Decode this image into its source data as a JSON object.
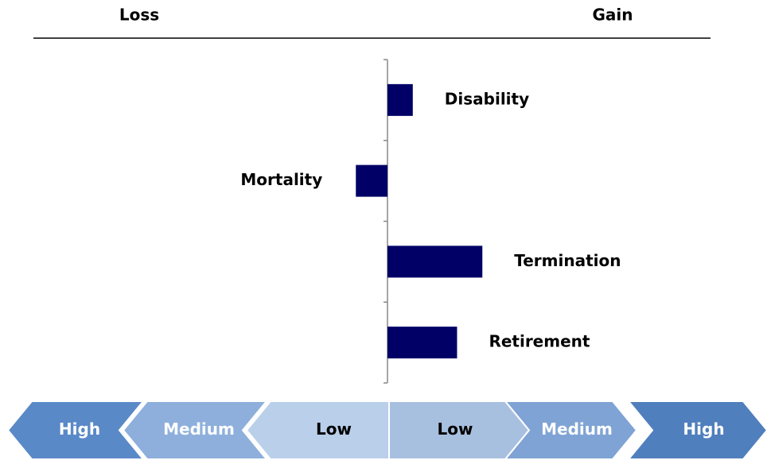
{
  "chart_data": {
    "type": "bar",
    "orientation": "horizontal",
    "left_label": "Loss",
    "right_label": "Gain",
    "categories": [
      "Disability",
      "Mortality",
      "Termination",
      "Retirement"
    ],
    "values": [
      0.2,
      -0.25,
      0.75,
      0.55
    ],
    "color": "#000066",
    "xlim": [
      -3,
      3
    ],
    "scale": {
      "labels": [
        "High",
        "Medium",
        "Low",
        "Low",
        "Medium",
        "High"
      ],
      "colors": [
        "#5a89c8",
        "#8eafdc",
        "#b9cfea",
        "#a8c0e0",
        "#7fa3d4",
        "#4f7fbd"
      ],
      "text_colors": [
        "#ffffff",
        "#ffffff",
        "#000000",
        "#000000",
        "#ffffff",
        "#ffffff"
      ]
    }
  }
}
